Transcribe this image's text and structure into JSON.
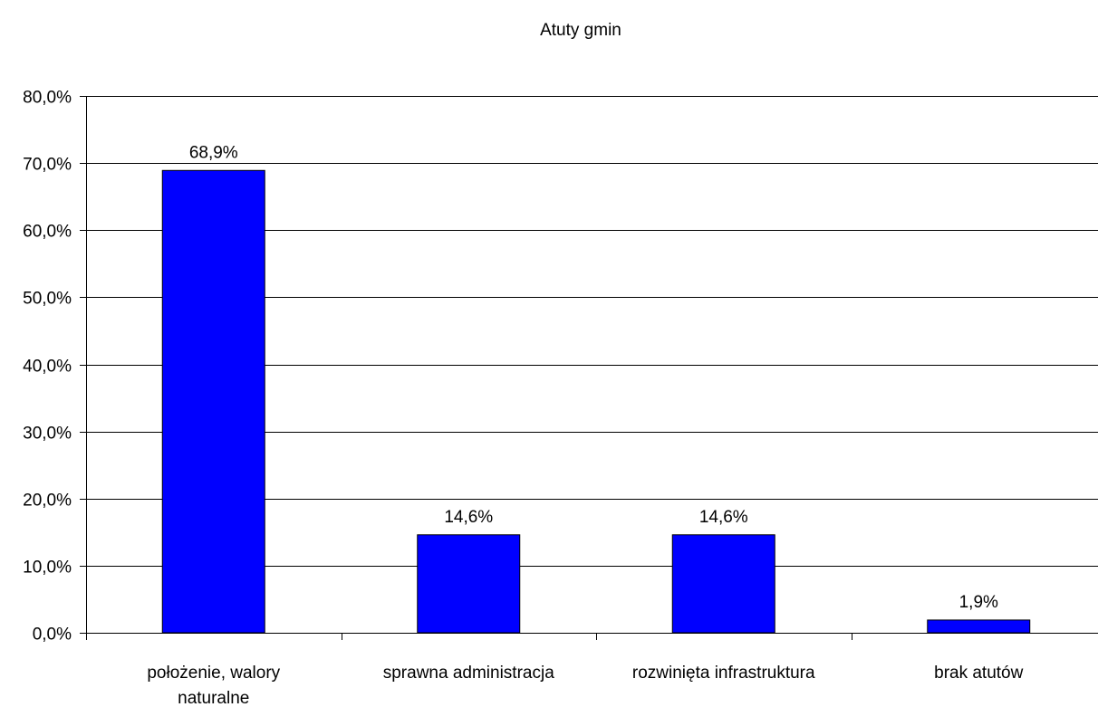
{
  "chart_data": {
    "type": "bar",
    "title": "Atuty gmin",
    "categories": [
      "położenie, walory naturalne",
      "sprawna administracja",
      "rozwinięta infrastruktura",
      "brak atutów"
    ],
    "values": [
      68.9,
      14.6,
      14.6,
      1.9
    ],
    "value_labels": [
      "68,9%",
      "14,6%",
      "14,6%",
      "1,9%"
    ],
    "xlabel": "",
    "ylabel": "",
    "ylim": [
      0,
      80
    ],
    "y_ticks": [
      0,
      10,
      20,
      30,
      40,
      50,
      60,
      70,
      80
    ],
    "y_tick_labels": [
      "0,0%",
      "10,0%",
      "20,0%",
      "30,0%",
      "40,0%",
      "50,0%",
      "60,0%",
      "70,0%",
      "80,0%"
    ],
    "grid": true,
    "legend": "none",
    "bar_color": "#0000ff",
    "bar_edge_color": "#000000"
  }
}
